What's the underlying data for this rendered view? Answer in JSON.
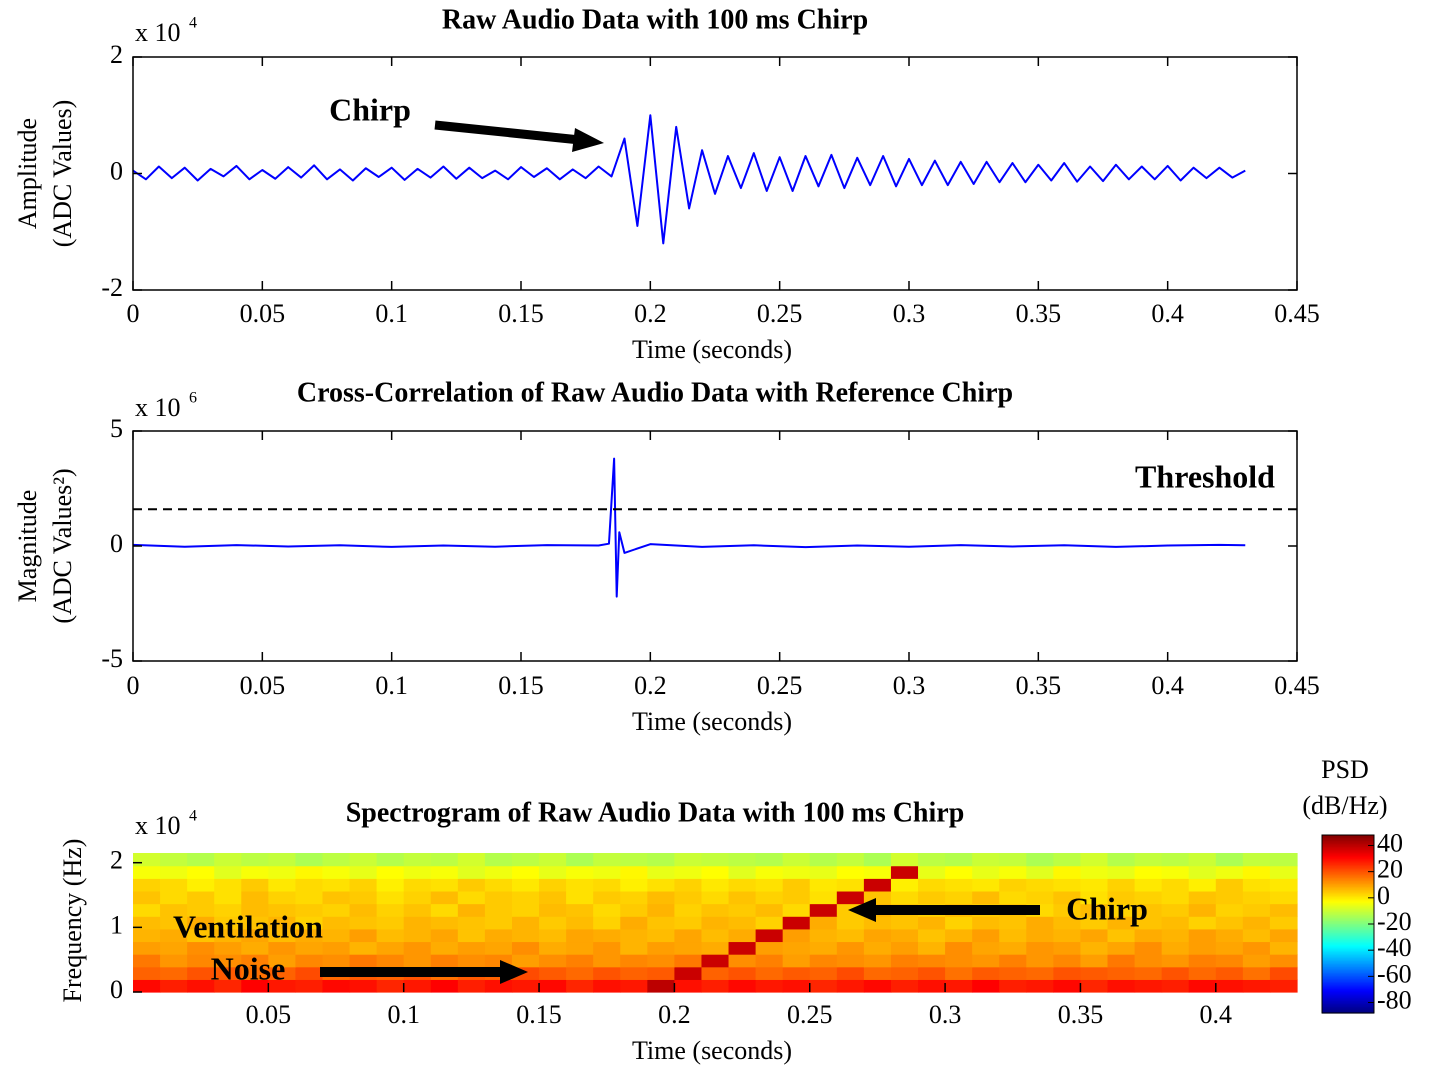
{
  "chart_data": [
    {
      "type": "line",
      "title": "Raw Audio Data with 100 ms Chirp",
      "xlabel": "Time (seconds)",
      "ylabel": [
        "Amplitude",
        "(ADC Values)"
      ],
      "y_multiplier": "x 10",
      "y_multiplier_exp": "4",
      "color": "#0000ff",
      "x": [
        0,
        0.005,
        0.01,
        0.015,
        0.02,
        0.025,
        0.03,
        0.035,
        0.04,
        0.045,
        0.05,
        0.055,
        0.06,
        0.065,
        0.07,
        0.075,
        0.08,
        0.085,
        0.09,
        0.095,
        0.1,
        0.105,
        0.11,
        0.115,
        0.12,
        0.125,
        0.13,
        0.135,
        0.14,
        0.145,
        0.15,
        0.155,
        0.16,
        0.165,
        0.17,
        0.175,
        0.18,
        0.185,
        0.19,
        0.195,
        0.2,
        0.205,
        0.21,
        0.215,
        0.22,
        0.225,
        0.23,
        0.235,
        0.24,
        0.245,
        0.25,
        0.255,
        0.26,
        0.265,
        0.27,
        0.275,
        0.28,
        0.285,
        0.29,
        0.295,
        0.3,
        0.305,
        0.31,
        0.315,
        0.32,
        0.325,
        0.33,
        0.335,
        0.34,
        0.345,
        0.35,
        0.355,
        0.36,
        0.365,
        0.37,
        0.375,
        0.38,
        0.385,
        0.39,
        0.395,
        0.4,
        0.405,
        0.41,
        0.415,
        0.42,
        0.425,
        0.43
      ],
      "values": [
        0.05,
        -0.1,
        0.12,
        -0.08,
        0.1,
        -0.12,
        0.08,
        -0.05,
        0.13,
        -0.1,
        0.06,
        -0.09,
        0.11,
        -0.07,
        0.14,
        -0.1,
        0.07,
        -0.12,
        0.09,
        -0.06,
        0.1,
        -0.11,
        0.08,
        -0.07,
        0.12,
        -0.09,
        0.1,
        -0.08,
        0.05,
        -0.1,
        0.11,
        -0.06,
        0.09,
        -0.1,
        0.07,
        -0.08,
        0.12,
        -0.05,
        0.6,
        -0.9,
        1.0,
        -1.2,
        0.8,
        -0.6,
        0.4,
        -0.35,
        0.3,
        -0.25,
        0.35,
        -0.3,
        0.28,
        -0.3,
        0.3,
        -0.22,
        0.32,
        -0.25,
        0.27,
        -0.2,
        0.3,
        -0.22,
        0.25,
        -0.2,
        0.22,
        -0.2,
        0.2,
        -0.18,
        0.2,
        -0.15,
        0.18,
        -0.15,
        0.15,
        -0.12,
        0.18,
        -0.14,
        0.12,
        -0.13,
        0.15,
        -0.1,
        0.12,
        -0.1,
        0.13,
        -0.12,
        0.1,
        -0.08,
        0.1,
        -0.07,
        0.05
      ],
      "xlim": [
        0,
        0.45
      ],
      "xticks": [
        0,
        0.05,
        0.1,
        0.15,
        0.2,
        0.25,
        0.3,
        0.35,
        0.4,
        0.45
      ],
      "ylim": [
        -2,
        2
      ],
      "yticks": [
        -2,
        0,
        2
      ],
      "annotations": [
        {
          "text": "Chirp"
        }
      ]
    },
    {
      "type": "line",
      "title": "Cross-Correlation of Raw Audio Data with Reference Chirp",
      "xlabel": "Time (seconds)",
      "ylabel": [
        "Magnitude",
        "(ADC Values²)"
      ],
      "y_multiplier": "x 10",
      "y_multiplier_exp": "6",
      "color": "#0000ff",
      "x": [
        0,
        0.02,
        0.04,
        0.06,
        0.08,
        0.1,
        0.12,
        0.14,
        0.16,
        0.18,
        0.184,
        0.186,
        0.187,
        0.188,
        0.19,
        0.2,
        0.22,
        0.24,
        0.26,
        0.28,
        0.3,
        0.32,
        0.34,
        0.36,
        0.38,
        0.4,
        0.42,
        0.43
      ],
      "values": [
        0.05,
        -0.03,
        0.04,
        -0.02,
        0.03,
        -0.04,
        0.02,
        -0.03,
        0.04,
        0.02,
        0.1,
        3.8,
        -2.2,
        0.6,
        -0.3,
        0.08,
        -0.04,
        0.03,
        -0.05,
        0.02,
        -0.03,
        0.04,
        -0.02,
        0.03,
        -0.04,
        0.02,
        0.05,
        0.03
      ],
      "xlim": [
        0,
        0.45
      ],
      "xticks": [
        0,
        0.05,
        0.1,
        0.15,
        0.2,
        0.25,
        0.3,
        0.35,
        0.4,
        0.45
      ],
      "ylim": [
        -5,
        5
      ],
      "yticks": [
        -5,
        0,
        5
      ],
      "threshold": {
        "value": 1.6,
        "label": "Threshold"
      }
    },
    {
      "type": "heatmap",
      "title": "Spectrogram of Raw Audio Data with 100 ms Chirp",
      "xlabel": "Time (seconds)",
      "ylabel": "Frequency (Hz)",
      "y_multiplier": "x 10",
      "y_multiplier_exp": "4",
      "xlim": [
        0,
        0.43
      ],
      "xticks": [
        0.05,
        0.1,
        0.15,
        0.2,
        0.25,
        0.3,
        0.35,
        0.4
      ],
      "ylim": [
        0,
        2.15
      ],
      "yticks": [
        0,
        1,
        2
      ],
      "clabel": [
        "PSD",
        "(dB/Hz)"
      ],
      "clim": [
        -88,
        48
      ],
      "cticks": [
        40,
        20,
        0,
        -20,
        -40,
        -60,
        -80
      ],
      "annotations": [
        {
          "text": "Ventilation"
        },
        {
          "text": "Noise"
        },
        {
          "text": "Chirp"
        }
      ],
      "z": [
        [
          30,
          27,
          29,
          26,
          31,
          28,
          27,
          30,
          29,
          26,
          28,
          31,
          27,
          29,
          28,
          30,
          26,
          29,
          28,
          40,
          29,
          27,
          30,
          28,
          29,
          26,
          28,
          30,
          27,
          29,
          28,
          31,
          27,
          28,
          30,
          26,
          29,
          28,
          27,
          30,
          29,
          28,
          27
        ],
        [
          18,
          17,
          20,
          19,
          16,
          18,
          21,
          17,
          19,
          18,
          20,
          16,
          19,
          18,
          21,
          19,
          17,
          20,
          18,
          19,
          38,
          18,
          20,
          17,
          19,
          18,
          21,
          17,
          18,
          20,
          16,
          19,
          18,
          17,
          20,
          19,
          18,
          17,
          20,
          17,
          19,
          16,
          21
        ],
        [
          15,
          11,
          13,
          12,
          14,
          10,
          13,
          12,
          15,
          13,
          11,
          14,
          12,
          13,
          10,
          12,
          14,
          11,
          13,
          12,
          15,
          38,
          12,
          14,
          10,
          13,
          12,
          11,
          14,
          13,
          12,
          11,
          14,
          11,
          13,
          10,
          15,
          12,
          11,
          14,
          13,
          10,
          12
        ],
        [
          10,
          9,
          12,
          10,
          8,
          11,
          9,
          10,
          7,
          9,
          11,
          8,
          10,
          9,
          12,
          8,
          9,
          11,
          7,
          10,
          9,
          8,
          38,
          10,
          9,
          8,
          11,
          8,
          10,
          7,
          12,
          9,
          8,
          11,
          10,
          7,
          9,
          12,
          8,
          10,
          9,
          11,
          7
        ],
        [
          7,
          8,
          5,
          7,
          9,
          6,
          8,
          7,
          10,
          6,
          7,
          9,
          5,
          8,
          7,
          6,
          9,
          8,
          7,
          6,
          9,
          6,
          8,
          38,
          10,
          7,
          6,
          9,
          8,
          5,
          7,
          10,
          6,
          8,
          7,
          9,
          5,
          8,
          7,
          10,
          8,
          6,
          9
        ],
        [
          6,
          5,
          8,
          4,
          5,
          7,
          3,
          6,
          5,
          4,
          7,
          6,
          5,
          4,
          7,
          4,
          6,
          3,
          8,
          5,
          4,
          7,
          6,
          3,
          38,
          8,
          4,
          6,
          5,
          7,
          3,
          6,
          5,
          8,
          6,
          4,
          7,
          5,
          6,
          3,
          5,
          7,
          4
        ],
        [
          2,
          5,
          4,
          3,
          6,
          5,
          4,
          3,
          6,
          3,
          5,
          2,
          7,
          4,
          3,
          6,
          5,
          2,
          4,
          7,
          3,
          5,
          4,
          6,
          2,
          38,
          4,
          7,
          5,
          3,
          6,
          4,
          5,
          2,
          4,
          6,
          3,
          5,
          4,
          7,
          3,
          4,
          6
        ],
        [
          5,
          2,
          4,
          1,
          6,
          3,
          2,
          5,
          4,
          1,
          3,
          6,
          2,
          4,
          3,
          5,
          1,
          4,
          3,
          6,
          4,
          2,
          5,
          3,
          4,
          1,
          38,
          5,
          2,
          4,
          3,
          6,
          2,
          3,
          5,
          1,
          4,
          3,
          2,
          5,
          4,
          3,
          2
        ],
        [
          3,
          2,
          -1,
          1,
          4,
          0,
          2,
          1,
          3,
          -1,
          2,
          1,
          4,
          2,
          0,
          3,
          1,
          2,
          -1,
          1,
          3,
          0,
          2,
          1,
          4,
          0,
          1,
          38,
          -1,
          2,
          1,
          0,
          3,
          2,
          1,
          0,
          3,
          0,
          2,
          -1,
          4,
          1,
          0
        ],
        [
          -4,
          -5,
          -3,
          -7,
          -4,
          -5,
          -2,
          -4,
          -6,
          -3,
          -5,
          -4,
          -7,
          -5,
          -3,
          -6,
          -4,
          -5,
          -2,
          -6,
          -5,
          -3,
          -7,
          -4,
          -5,
          -6,
          -3,
          -4,
          38,
          -6,
          -3,
          -6,
          -4,
          -7,
          -2,
          -5,
          -6,
          -3,
          -4,
          -7,
          -5,
          -2,
          -6
        ],
        [
          -9,
          -11,
          -13,
          -10,
          -12,
          -11,
          -14,
          -12,
          -10,
          -13,
          -11,
          -12,
          -9,
          -13,
          -12,
          -10,
          -14,
          -11,
          -12,
          -13,
          -10,
          -11,
          -12,
          -13,
          -10,
          -13,
          -11,
          -14,
          -9,
          -12,
          -13,
          -10,
          -11,
          -14,
          -12,
          -9,
          -13,
          -11,
          -12,
          -10,
          -14,
          -11,
          -12
        ]
      ]
    }
  ]
}
